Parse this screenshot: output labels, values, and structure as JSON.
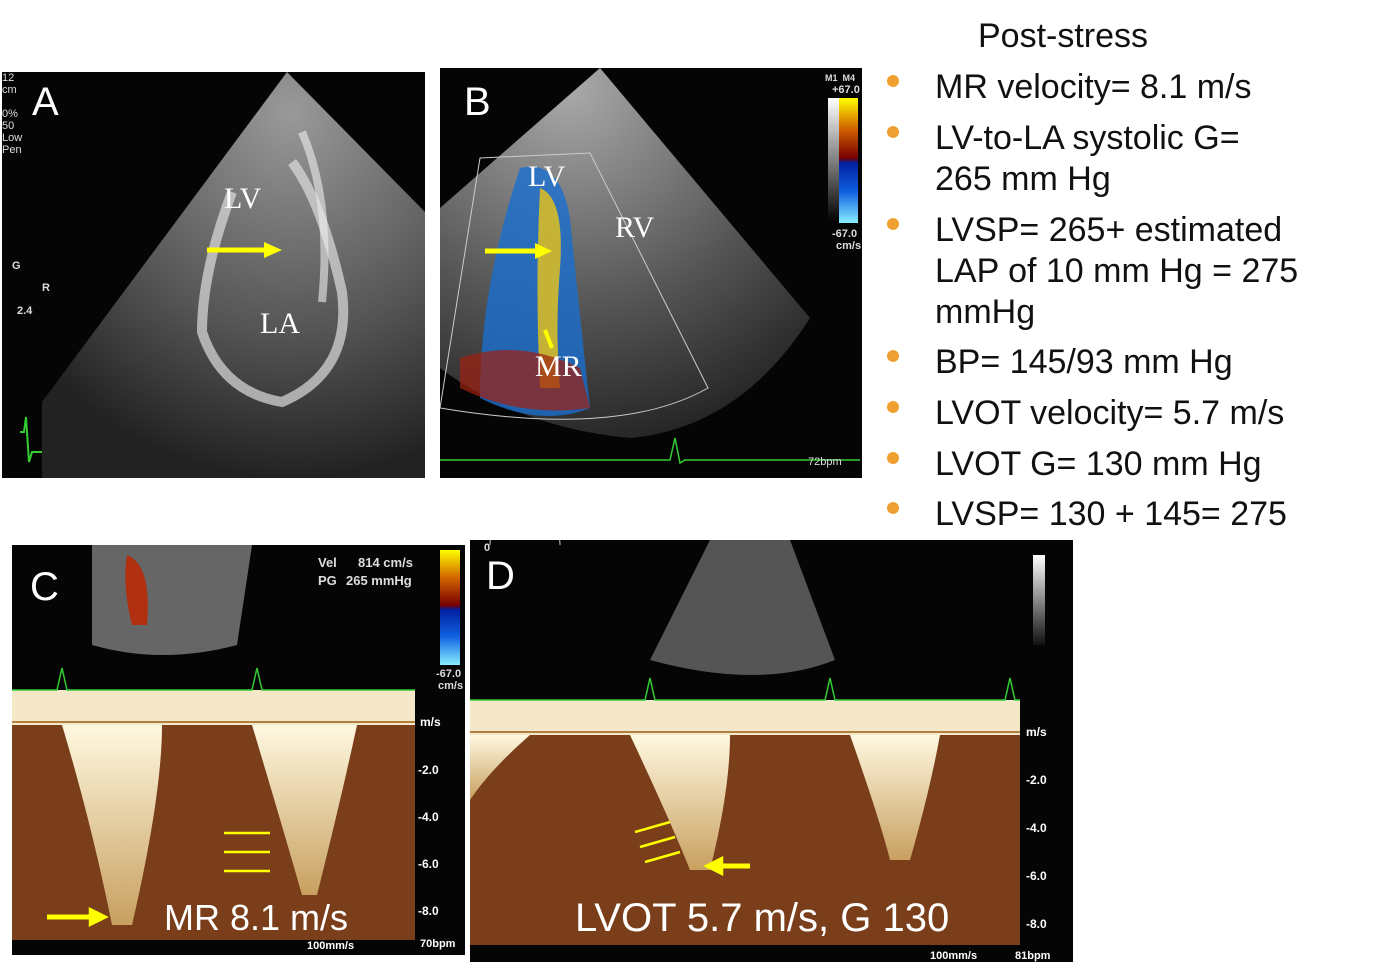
{
  "panel_a": {
    "label": "A",
    "labels": [
      "LV",
      "LA"
    ],
    "settings": [
      "12",
      "cm",
      "0%",
      "50",
      "Low",
      "Pen"
    ],
    "gain_label": "G",
    "r_label": "R",
    "gain_value": "2.4"
  },
  "panel_b": {
    "label": "B",
    "labels": [
      "LV",
      "RV",
      "MR"
    ],
    "scale_modes": "M1  M4",
    "scale_top": "+67.0",
    "scale_bottom": "-67.0",
    "scale_unit": "cm/s",
    "hr": "72bpm"
  },
  "panel_c": {
    "label": "C",
    "vel_label": "Vel",
    "vel_value": "814 cm/s",
    "pg_label": "PG",
    "pg_value": "265 mmHg",
    "scale_bottom": "-67.0",
    "scale_unit": "cm/s",
    "axis_unit": "m/s",
    "ticks": [
      "-2.0",
      "-4.0",
      "-6.0",
      "-8.0"
    ],
    "sweep": "100mm/s",
    "hr": "70bpm",
    "caption": "MR 8.1 m/s"
  },
  "panel_d": {
    "label": "D",
    "zero": "0",
    "axis_unit": "m/s",
    "ticks": [
      "-2.0",
      "-4.0",
      "-6.0",
      "-8.0"
    ],
    "sweep": "100mm/s",
    "hr": "81bpm",
    "caption": "LVOT 5.7 m/s, G 130"
  },
  "summary": {
    "title": "Post-stress",
    "bullets": [
      [
        "MR velocity= 8.1 m/s"
      ],
      [
        "LV-to-LA systolic G=",
        "265 mm Hg"
      ],
      [
        "LVSP= 265+ estimated",
        "LAP of 10 mm Hg = 275",
        "mmHg"
      ],
      [
        "BP= 145/93 mm Hg"
      ],
      [
        "LVOT velocity= 5.7 m/s"
      ],
      [
        "LVOT G= 130 mm Hg"
      ],
      [
        "LVSP= 130 + 145= 275"
      ]
    ],
    "bullet_color": "#f0a030"
  }
}
